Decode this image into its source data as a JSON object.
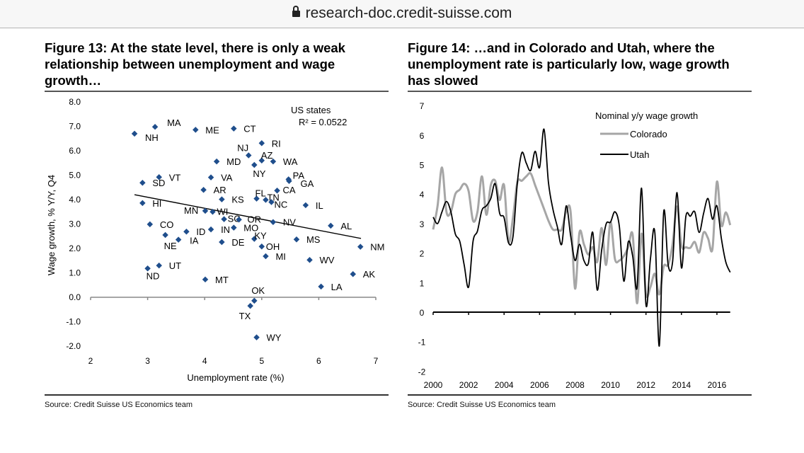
{
  "browser": {
    "url": "research-doc.credit-suisse.com",
    "lock_icon": "lock-icon"
  },
  "figure13": {
    "title": "Figure 13: At the state level, there is only a weak relationship between unemployment and wage growth…",
    "source": "Source: Credit Suisse US Economics team"
  },
  "figure14": {
    "title": "Figure 14: …and in Colorado and Utah, where the unemployment rate is particularly low, wage growth has slowed",
    "source": "Source: Credit Suisse US Economics team"
  },
  "chart_data": [
    {
      "type": "scatter",
      "title": "",
      "xlabel": "Unemployment rate (%)",
      "ylabel": "Wage growth, % Y/Y, Q4",
      "xlim": [
        2,
        7
      ],
      "ylim": [
        -2,
        8
      ],
      "xticks": [
        "2",
        "3",
        "4",
        "5",
        "6",
        "7"
      ],
      "yticks": [
        "8.0",
        "7.0",
        "6.0",
        "5.0",
        "4.0",
        "3.0",
        "2.0",
        "1.0",
        "0.0",
        "-1.0",
        "-2.0"
      ],
      "legend": {
        "series": "US states",
        "r_squared": "R² = 0.0522"
      },
      "marker_color": "#1f4e8c",
      "trendline": {
        "x": [
          2.77,
          6.74
        ],
        "y": [
          4.2,
          2.41
        ]
      },
      "points": [
        {
          "label": "NH",
          "x": 2.77,
          "y": 6.7
        },
        {
          "label": "MA",
          "x": 3.13,
          "y": 6.98
        },
        {
          "label": "ME",
          "x": 3.84,
          "y": 6.86
        },
        {
          "label": "CT",
          "x": 4.51,
          "y": 6.91
        },
        {
          "label": "RI",
          "x": 5.0,
          "y": 6.31
        },
        {
          "label": "NJ",
          "x": 4.77,
          "y": 5.81
        },
        {
          "label": "AZ",
          "x": 5.0,
          "y": 5.6
        },
        {
          "label": "MD",
          "x": 4.21,
          "y": 5.56
        },
        {
          "label": "WA",
          "x": 5.2,
          "y": 5.56
        },
        {
          "label": "NY",
          "x": 4.87,
          "y": 5.42
        },
        {
          "label": "VT",
          "x": 3.2,
          "y": 4.92
        },
        {
          "label": "VA",
          "x": 4.11,
          "y": 4.91
        },
        {
          "label": "PA",
          "x": 5.47,
          "y": 4.83
        },
        {
          "label": "GA",
          "x": 5.48,
          "y": 4.76
        },
        {
          "label": "SD",
          "x": 2.91,
          "y": 4.69
        },
        {
          "label": "AR",
          "x": 3.98,
          "y": 4.4
        },
        {
          "label": "CA",
          "x": 5.27,
          "y": 4.37
        },
        {
          "label": "FL",
          "x": 4.91,
          "y": 4.04
        },
        {
          "label": "TN",
          "x": 5.07,
          "y": 3.99
        },
        {
          "label": "KS",
          "x": 4.3,
          "y": 4.01
        },
        {
          "label": "NC",
          "x": 5.17,
          "y": 3.9
        },
        {
          "label": "HI",
          "x": 2.91,
          "y": 3.86
        },
        {
          "label": "IL",
          "x": 5.77,
          "y": 3.77
        },
        {
          "label": "MN",
          "x": 4.01,
          "y": 3.54
        },
        {
          "label": "WI",
          "x": 4.14,
          "y": 3.5
        },
        {
          "label": "SC",
          "x": 4.34,
          "y": 3.2
        },
        {
          "label": "OR",
          "x": 4.6,
          "y": 3.18
        },
        {
          "label": "NV",
          "x": 5.2,
          "y": 3.08
        },
        {
          "label": "AL",
          "x": 6.21,
          "y": 2.93
        },
        {
          "label": "CO",
          "x": 3.04,
          "y": 2.99
        },
        {
          "label": "MO",
          "x": 4.51,
          "y": 2.85
        },
        {
          "label": "IN",
          "x": 4.11,
          "y": 2.78
        },
        {
          "label": "ID",
          "x": 3.68,
          "y": 2.69
        },
        {
          "label": "NE",
          "x": 3.31,
          "y": 2.55
        },
        {
          "label": "IA",
          "x": 3.54,
          "y": 2.36
        },
        {
          "label": "DE",
          "x": 4.3,
          "y": 2.26
        },
        {
          "label": "KY",
          "x": 4.87,
          "y": 2.39
        },
        {
          "label": "OH",
          "x": 5.0,
          "y": 2.08
        },
        {
          "label": "MS",
          "x": 5.61,
          "y": 2.37
        },
        {
          "label": "NM",
          "x": 6.73,
          "y": 2.07
        },
        {
          "label": "MI",
          "x": 5.07,
          "y": 1.68
        },
        {
          "label": "WV",
          "x": 5.84,
          "y": 1.53
        },
        {
          "label": "UT",
          "x": 3.2,
          "y": 1.3
        },
        {
          "label": "ND",
          "x": 3.0,
          "y": 1.18
        },
        {
          "label": "AK",
          "x": 6.6,
          "y": 0.95
        },
        {
          "label": "MT",
          "x": 4.01,
          "y": 0.73
        },
        {
          "label": "LA",
          "x": 6.04,
          "y": 0.44
        },
        {
          "label": "OK",
          "x": 4.87,
          "y": -0.14
        },
        {
          "label": "TX",
          "x": 4.8,
          "y": -0.35
        },
        {
          "label": "WY",
          "x": 4.91,
          "y": -1.64
        }
      ]
    },
    {
      "type": "line",
      "title": "",
      "xlabel": "",
      "ylabel": "",
      "xlim": [
        2000,
        2016.75
      ],
      "ylim": [
        -2,
        7
      ],
      "xticks": [
        "2000",
        "2002",
        "2004",
        "2006",
        "2008",
        "2010",
        "2012",
        "2014",
        "2016"
      ],
      "yticks": [
        "7",
        "6",
        "5",
        "4",
        "3",
        "2",
        "1",
        "0",
        "-1",
        "-2"
      ],
      "legend": {
        "title": "Nominal y/y wage growth",
        "placement": "top-right"
      },
      "x_start": 2000,
      "x_step": 0.25,
      "series": [
        {
          "name": "Colorado",
          "color": "#a6a6a6",
          "values": [
            2.8,
            3.6,
            4.9,
            3.4,
            3.4,
            4.0,
            4.15,
            4.35,
            4.1,
            3.1,
            3.4,
            4.6,
            3.3,
            4.3,
            4.45,
            3.8,
            4.3,
            2.4,
            3.2,
            4.4,
            4.45,
            4.6,
            4.7,
            4.3,
            3.9,
            3.5,
            3.1,
            2.8,
            2.8,
            2.8,
            3.4,
            3.4,
            0.8,
            2.7,
            2.3,
            1.95,
            2.2,
            1.7,
            2.85,
            1.6,
            3.05,
            1.8,
            1.75,
            1.9,
            2.2,
            2.62,
            0.3,
            2.66,
            0.62,
            0.85,
            1.3,
            0.6,
            1.55,
            1.6,
            2.3,
            3.58,
            2.26,
            2.2,
            2.18,
            2.38,
            2.02,
            2.7,
            2.5,
            2.15,
            4.42,
            2.94,
            3.38,
            2.95
          ]
        },
        {
          "name": "Utah",
          "color": "#000000",
          "values": [
            3.22,
            3.0,
            3.4,
            3.75,
            3.4,
            2.65,
            2.4,
            1.6,
            0.85,
            2.4,
            2.75,
            3.45,
            3.6,
            3.85,
            4.35,
            3.35,
            3.2,
            2.35,
            2.55,
            4.4,
            5.4,
            5.05,
            4.8,
            5.45,
            4.9,
            6.2,
            4.4,
            3.5,
            2.9,
            2.3,
            3.6,
            2.6,
            1.75,
            2.3,
            1.75,
            1.65,
            2.7,
            0.75,
            2.1,
            2.98,
            3.05,
            3.4,
            2.9,
            1.05,
            2.38,
            1.9,
            0.85,
            4.2,
            0.25,
            1.8,
            2.7,
            -1.15,
            3.4,
            1.6,
            1.7,
            4.05,
            1.5,
            3.25,
            3.25,
            3.4,
            2.7,
            3.35,
            3.85,
            3.15,
            3.6,
            2.5,
            1.7,
            1.35
          ]
        }
      ]
    }
  ]
}
